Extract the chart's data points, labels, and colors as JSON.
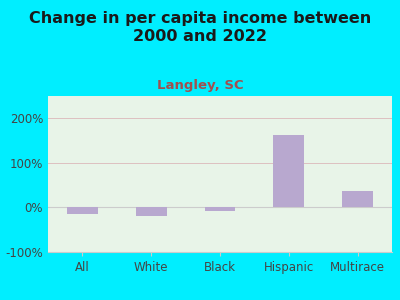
{
  "title": "Change in per capita income between\n2000 and 2022",
  "subtitle": "Langley, SC",
  "categories": [
    "All",
    "White",
    "Black",
    "Hispanic",
    "Multirace"
  ],
  "values": [
    -15,
    -20,
    -7,
    162,
    37
  ],
  "bar_color": "#b8a8cf",
  "background_outer": "#00eeff",
  "title_color": "#1a1a1a",
  "subtitle_color": "#a05050",
  "title_fontsize": 11.5,
  "subtitle_fontsize": 9.5,
  "tick_fontsize": 8.5,
  "ylim": [
    -100,
    250
  ],
  "yticks": [
    -100,
    0,
    100,
    200
  ],
  "ytick_labels": [
    "-100%",
    "0%",
    "100%",
    "200%"
  ],
  "grid_color": "#ddc0c0",
  "plot_bg": "#e8f4e8"
}
